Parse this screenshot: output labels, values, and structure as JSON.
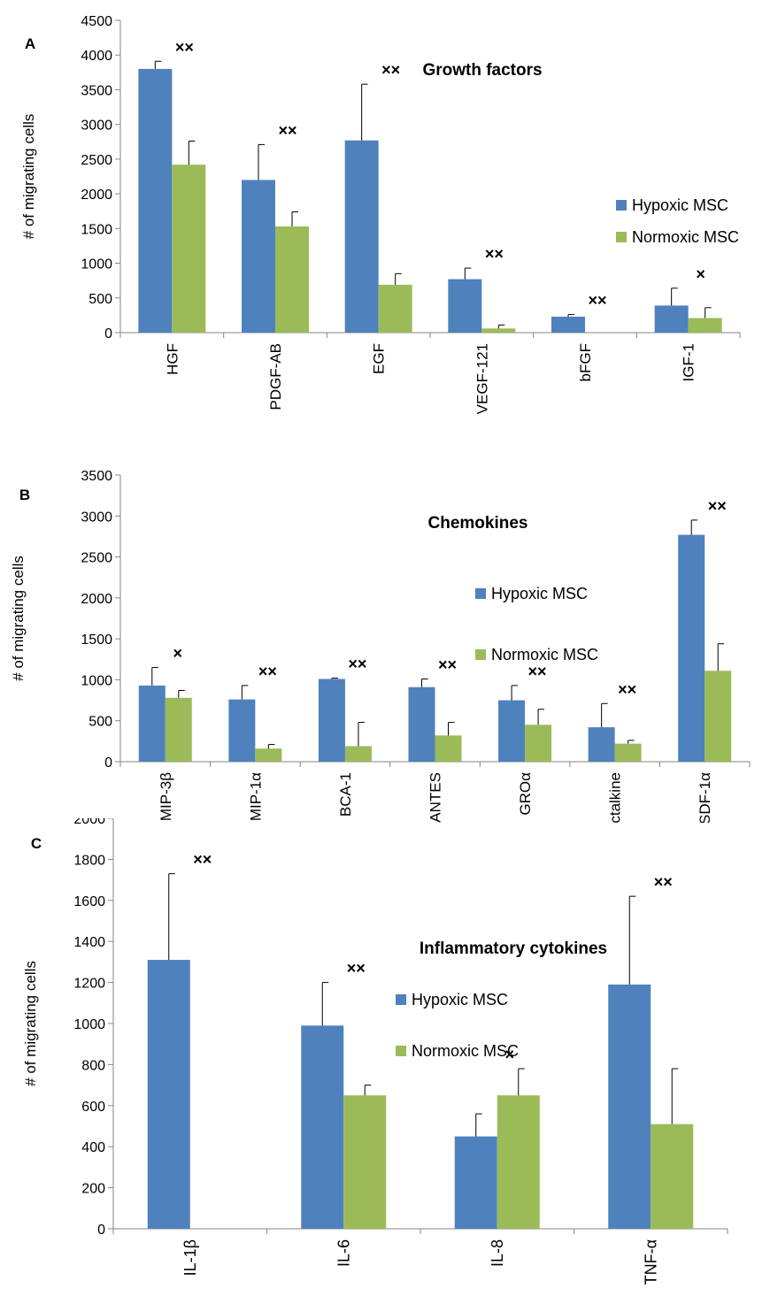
{
  "colors": {
    "hypoxic": "#4F81BD",
    "normoxic": "#9BBB59",
    "axis": "#868686",
    "text": "#000000"
  },
  "chart_data": [
    {
      "type": "bar",
      "panel_label": "A",
      "title": "Growth factors",
      "ylabel": "# of migrating cells",
      "xlabel": "",
      "ylim": [
        0,
        4500
      ],
      "ytick_step": 500,
      "legend_position": "right",
      "categories": [
        "HGF",
        "PDGF-AB",
        "EGF",
        "VEGF-121",
        "bFGF",
        "IGF-1"
      ],
      "series": [
        {
          "name": "Hypoxic MSC",
          "values": [
            3800,
            2200,
            2770,
            770,
            230,
            390
          ],
          "errors": [
            110,
            510,
            810,
            160,
            30,
            250
          ]
        },
        {
          "name": "Normoxic MSC",
          "values": [
            2420,
            1530,
            690,
            60,
            0,
            210
          ],
          "errors": [
            340,
            210,
            160,
            50,
            0,
            150
          ]
        }
      ],
      "annotations": [
        "××",
        "××",
        "××",
        "××",
        "××",
        "×"
      ]
    },
    {
      "type": "bar",
      "panel_label": "B",
      "title": "Chemokines",
      "ylabel": "# of migrating cells",
      "xlabel": "",
      "ylim": [
        0,
        3500
      ],
      "ytick_step": 500,
      "legend_position": "center",
      "categories": [
        "MIP-3β",
        "MIP-1α",
        "BCA-1",
        "RANTES",
        "GROα",
        "Fractalkine",
        "SDF-1α"
      ],
      "series": [
        {
          "name": "Hypoxic MSC",
          "values": [
            930,
            760,
            1010,
            910,
            750,
            420,
            2770
          ],
          "errors": [
            220,
            170,
            10,
            100,
            180,
            290,
            180
          ]
        },
        {
          "name": "Normoxic MSC",
          "values": [
            780,
            160,
            190,
            320,
            450,
            220,
            1110
          ],
          "errors": [
            90,
            50,
            290,
            160,
            190,
            40,
            330
          ]
        }
      ],
      "annotations": [
        "×",
        "××",
        "××",
        "××",
        "××",
        "××",
        "××"
      ]
    },
    {
      "type": "bar",
      "panel_label": "C",
      "title": "Inflammatory cytokines",
      "ylabel": "# of migrating cells",
      "xlabel": "",
      "ylim": [
        0,
        2000
      ],
      "ytick_step": 200,
      "legend_position": "center",
      "categories": [
        "IL-1β",
        "IL-6",
        "IL-8",
        "TNF-α"
      ],
      "series": [
        {
          "name": "Hypoxic MSC",
          "values": [
            1310,
            990,
            450,
            1190
          ],
          "errors": [
            420,
            210,
            110,
            430
          ]
        },
        {
          "name": "Normoxic MSC",
          "values": [
            0,
            650,
            650,
            510
          ],
          "errors": [
            0,
            50,
            130,
            270
          ]
        }
      ],
      "annotations": [
        "××",
        "××",
        "×",
        "××"
      ]
    }
  ]
}
